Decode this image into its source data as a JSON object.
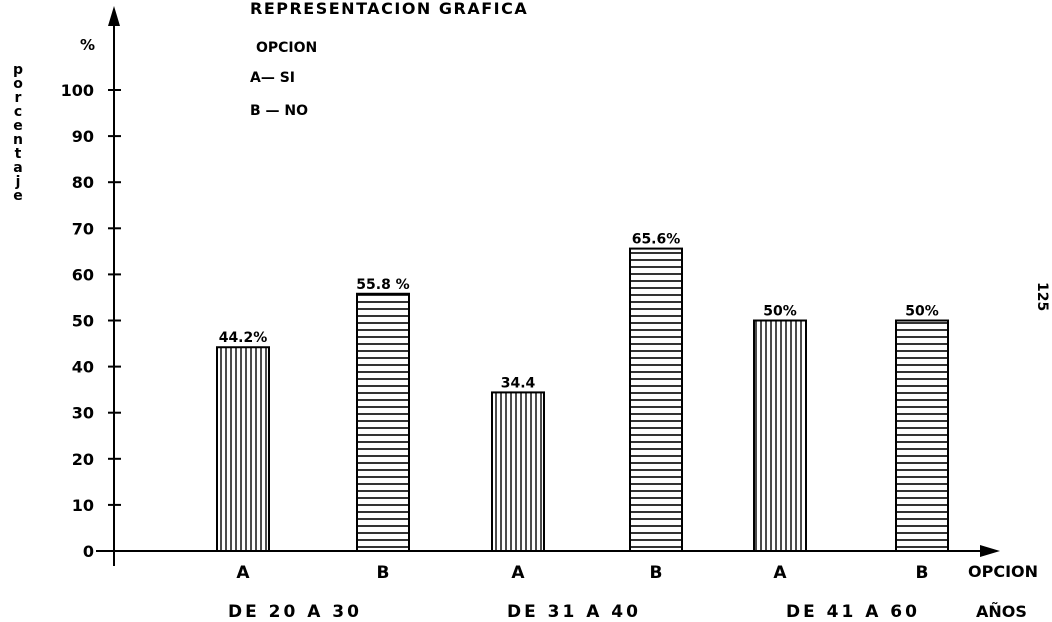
{
  "chart_data": {
    "type": "bar",
    "title": "REPRESENTACION GRAFICA",
    "ylabel": "porcentaje",
    "yunit": "%",
    "xlabel": "OPCION",
    "group_axis_label": "AÑOS",
    "ylim": [
      0,
      100
    ],
    "yticks": [
      0,
      10,
      20,
      30,
      40,
      50,
      60,
      70,
      80,
      90,
      100
    ],
    "legend": {
      "title": "OPCION",
      "items": [
        "A— SI",
        "B — NO"
      ],
      "position": "top-left"
    },
    "grid": false,
    "groups": [
      "DE 20 A 30",
      "DE 31 A 40",
      "DE 41 A 60"
    ],
    "bars": [
      {
        "group": "DE 20 A 30",
        "option": "A",
        "value": 44.2,
        "label": "44.2%"
      },
      {
        "group": "DE 20 A 30",
        "option": "B",
        "value": 55.8,
        "label": "55.8 %"
      },
      {
        "group": "DE 31 A 40",
        "option": "A",
        "value": 34.4,
        "label": "34.4"
      },
      {
        "group": "DE 31 A 40",
        "option": "B",
        "value": 65.6,
        "label": "65.6%"
      },
      {
        "group": "DE 41 A 60",
        "option": "A",
        "value": 50,
        "label": "50%"
      },
      {
        "group": "DE 41 A 60",
        "option": "B",
        "value": 50,
        "label": "50%"
      }
    ]
  },
  "page_number": "125"
}
